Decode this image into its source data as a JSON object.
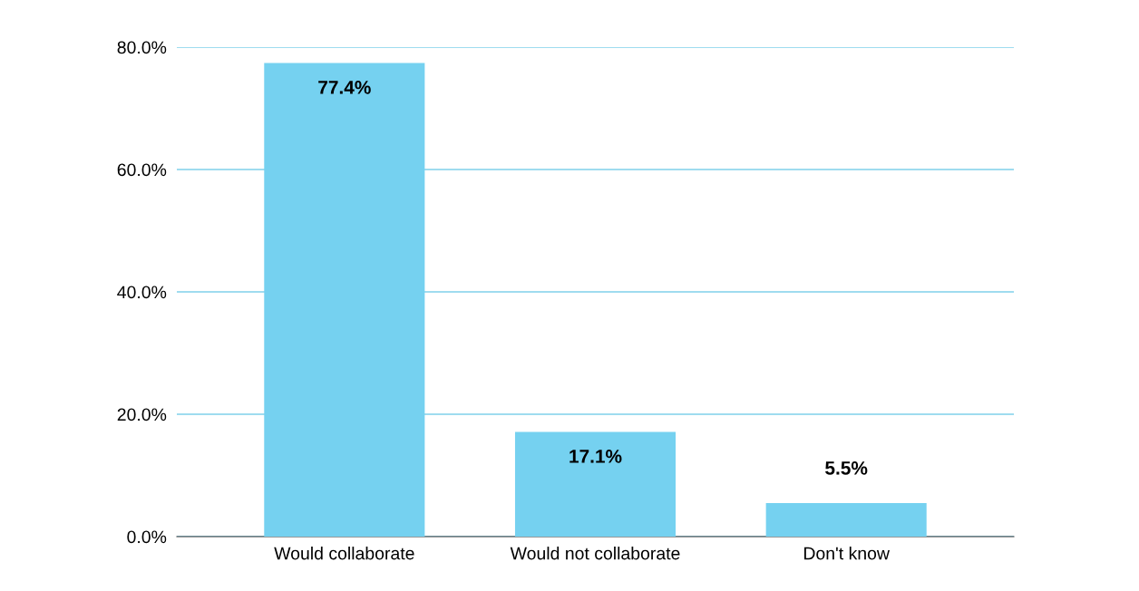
{
  "chart_data": {
    "type": "bar",
    "categories": [
      "Would collaborate",
      "Would not collaborate",
      "Don't know"
    ],
    "values": [
      77.4,
      17.1,
      5.5
    ],
    "value_labels": [
      "77.4%",
      "17.1%",
      "5.5%"
    ],
    "color": "#75d1f0",
    "ylim": [
      0,
      80
    ],
    "yticks": [
      {
        "value": 0,
        "label": "0.0%"
      },
      {
        "value": 20,
        "label": "20.0%"
      },
      {
        "value": 40,
        "label": "40.0%"
      },
      {
        "value": 60,
        "label": "60.0%"
      },
      {
        "value": 80,
        "label": "80.0%"
      }
    ],
    "grid": "y"
  }
}
